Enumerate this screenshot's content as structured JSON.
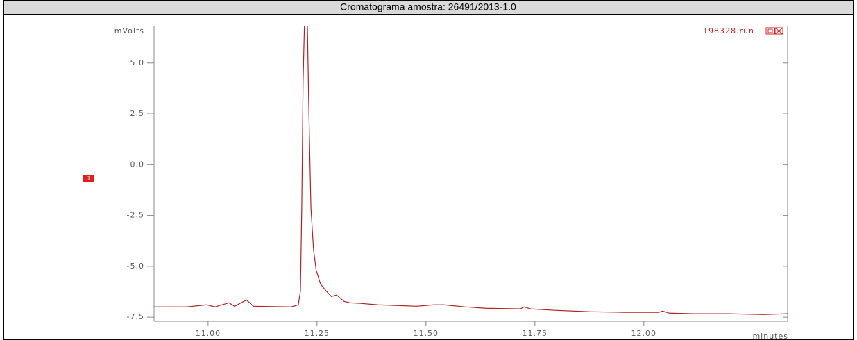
{
  "chart_data": {
    "type": "line",
    "title": "Cromatograma amostra: 26491/2013-1.0",
    "y_label": "mVolts",
    "x_label": "minutes",
    "run_label": "198328.run",
    "marker_label": "1",
    "xlim": [
      10.876,
      12.33
    ],
    "ylim": [
      -7.7,
      6.8
    ],
    "xticks": [
      {
        "value": 11,
        "label": "11.00"
      },
      11.25,
      {
        "value": 11.5,
        "label": "11.50"
      },
      11.75,
      {
        "value": 12,
        "label": "12.00"
      }
    ],
    "yticks": [
      {
        "value": 5,
        "label": "5.0"
      },
      2.5,
      {
        "value": 0,
        "label": "0.0"
      },
      -2.5,
      {
        "value": -5,
        "label": "-5.0"
      },
      -7.5
    ],
    "x": [
      10.876,
      10.952,
      10.997,
      11.016,
      11.048,
      11.061,
      11.088,
      11.104,
      11.191,
      11.207,
      11.212,
      11.215,
      11.218,
      11.221,
      11.225,
      11.228,
      11.231,
      11.236,
      11.242,
      11.248,
      11.258,
      11.271,
      11.283,
      11.295,
      11.312,
      11.326,
      11.35,
      11.39,
      11.43,
      11.478,
      11.518,
      11.541,
      11.589,
      11.637,
      11.717,
      11.725,
      11.74,
      11.796,
      11.876,
      11.955,
      12.035,
      12.043,
      12.059,
      12.115,
      12.194,
      12.274,
      12.33
    ],
    "series": [
      {
        "color": "#b22222",
        "values": [
          -6.99,
          -6.99,
          -6.89,
          -6.99,
          -6.79,
          -6.96,
          -6.65,
          -6.96,
          -6.99,
          -6.89,
          -6.21,
          -2.11,
          4.02,
          6.75,
          8,
          6.75,
          3.0,
          -2.11,
          -4.16,
          -5.18,
          -5.87,
          -6.21,
          -6.48,
          -6.41,
          -6.72,
          -6.79,
          -6.82,
          -6.89,
          -6.92,
          -6.96,
          -6.89,
          -6.89,
          -6.99,
          -7.06,
          -7.09,
          -6.99,
          -7.09,
          -7.16,
          -7.23,
          -7.26,
          -7.26,
          -7.2,
          -7.3,
          -7.33,
          -7.33,
          -7.37,
          -7.33
        ]
      }
    ]
  }
}
